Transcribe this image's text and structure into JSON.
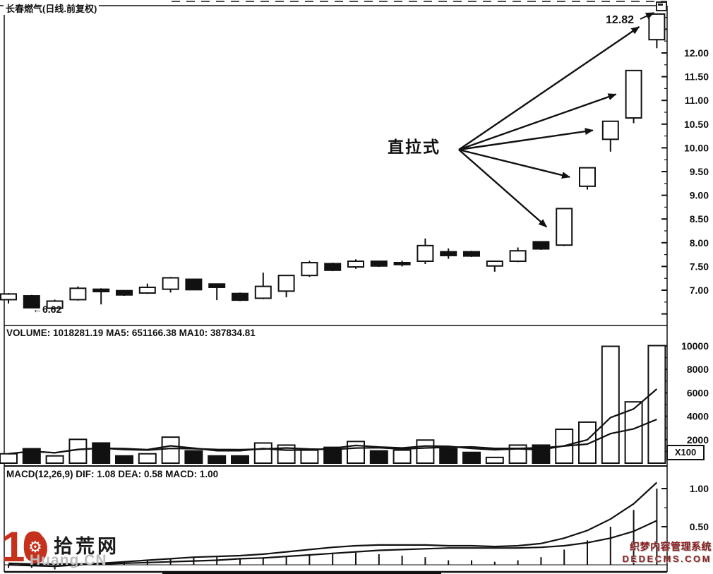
{
  "window": {
    "title": "长春燃气(日线.前复权)"
  },
  "annotations": {
    "pattern_label": "直拉式",
    "peak_price_label": "12.82",
    "low_price_label": "←6.62"
  },
  "volume_panel": {
    "header": "VOLUME: 1018281.19 MA5: 651166.38 MA10: 387834.81",
    "unit_label": "X100"
  },
  "macd_panel": {
    "header": "MACD(12,26,9) DIF: 1.08 DEA: 0.58 MACD: 1.00"
  },
  "watermarks": {
    "left": {
      "big_number": "10",
      "gear_icon": "⚙",
      "site_name_cn": "拾荒网",
      "site_name_en": "Huang.CN"
    },
    "right": {
      "line1": "织梦内容管理系统",
      "line2": "DEDECMS.COM"
    }
  },
  "colors": {
    "ink": "#111111",
    "panel_bg": "#ffffff",
    "watermark_red": "#c5311c",
    "watermark_maroon": "#8b2020",
    "watermark_gray": "#bdbdbd"
  },
  "chart_data": [
    {
      "type": "candlestick",
      "title": "长春燃气(日线.前复权)",
      "y_axis": {
        "tick_values": [
          12.0,
          11.5,
          11.0,
          10.5,
          10.0,
          9.5,
          9.0,
          8.5,
          8.0,
          7.5,
          7.0
        ],
        "tick_labels": [
          "12.00",
          "11.50",
          "11.00",
          "10.50",
          "10.00",
          "9.50",
          "9.00",
          "8.50",
          "8.00",
          "7.50",
          "7.00"
        ]
      },
      "columns": [
        "high",
        "body_top",
        "body_bottom",
        "low",
        "fill"
      ],
      "candles": [
        [
          6.94,
          6.92,
          6.8,
          6.72,
          "w"
        ],
        [
          6.9,
          6.88,
          6.63,
          6.62,
          "b"
        ],
        [
          6.8,
          6.77,
          6.62,
          6.6,
          "w"
        ],
        [
          7.08,
          7.04,
          6.8,
          6.78,
          "w"
        ],
        [
          7.04,
          7.02,
          6.97,
          6.7,
          "b"
        ],
        [
          7.0,
          6.99,
          6.9,
          6.88,
          "b"
        ],
        [
          7.14,
          7.06,
          6.94,
          6.92,
          "w"
        ],
        [
          7.28,
          7.26,
          7.02,
          6.95,
          "w"
        ],
        [
          7.24,
          7.23,
          7.01,
          7.0,
          "b"
        ],
        [
          7.14,
          7.13,
          7.06,
          6.79,
          "b"
        ],
        [
          6.95,
          6.93,
          6.79,
          6.77,
          "b"
        ],
        [
          7.37,
          7.08,
          6.83,
          6.81,
          "w"
        ],
        [
          7.32,
          7.31,
          6.98,
          6.85,
          "w"
        ],
        [
          7.62,
          7.58,
          7.31,
          7.28,
          "w"
        ],
        [
          7.58,
          7.56,
          7.42,
          7.4,
          "b"
        ],
        [
          7.65,
          7.61,
          7.49,
          7.45,
          "w"
        ],
        [
          7.62,
          7.61,
          7.51,
          7.49,
          "b"
        ],
        [
          7.62,
          7.58,
          7.54,
          7.5,
          "b"
        ],
        [
          8.09,
          7.94,
          7.61,
          7.55,
          "w"
        ],
        [
          7.88,
          7.81,
          7.73,
          7.66,
          "b"
        ],
        [
          7.83,
          7.81,
          7.72,
          7.7,
          "b"
        ],
        [
          7.62,
          7.61,
          7.51,
          7.39,
          "w"
        ],
        [
          7.9,
          7.83,
          7.61,
          7.59,
          "w"
        ],
        [
          8.03,
          8.02,
          7.87,
          7.85,
          "b"
        ],
        [
          8.72,
          8.72,
          7.95,
          7.93,
          "w"
        ],
        [
          9.58,
          9.58,
          9.19,
          9.12,
          "w"
        ],
        [
          10.56,
          10.56,
          10.18,
          9.92,
          "w"
        ],
        [
          11.63,
          11.63,
          10.63,
          10.52,
          "w"
        ],
        [
          12.82,
          12.82,
          12.28,
          12.1,
          "w"
        ]
      ],
      "pattern_annotation": {
        "label": "直拉式",
        "target_candles": [
          24,
          25,
          26,
          27,
          28
        ]
      },
      "peak_annotation": {
        "label": "12.82",
        "candle": 28
      },
      "low_annotation": {
        "label": "←6.62",
        "candle": 1
      }
    },
    {
      "type": "bar",
      "name": "VOLUME",
      "header": "VOLUME: 1018281.19 MA5: 651166.38 MA10: 387834.81",
      "unit": "X100",
      "y_axis": {
        "tick_values": [
          10000,
          8000,
          6000,
          4000,
          2000
        ],
        "tick_labels": [
          "10000",
          "8000",
          "6000",
          "4000",
          "2000"
        ]
      },
      "values": [
        800,
        1230,
        620,
        2030,
        1720,
        620,
        800,
        2220,
        1050,
        620,
        620,
        1720,
        1540,
        1110,
        1350,
        1850,
        1050,
        1110,
        1970,
        1230,
        920,
        490,
        1540,
        1540,
        2890,
        3500,
        9970,
        5230,
        10030
      ],
      "fills": [
        "w",
        "b",
        "w",
        "w",
        "b",
        "b",
        "w",
        "w",
        "b",
        "b",
        "b",
        "w",
        "w",
        "w",
        "b",
        "w",
        "b",
        "w",
        "w",
        "b",
        "b",
        "w",
        "w",
        "b",
        "w",
        "w",
        "w",
        "w",
        "w"
      ],
      "ma_windows": [
        5,
        10
      ]
    },
    {
      "type": "line",
      "name": "MACD",
      "header": "MACD(12,26,9) DIF: 1.08 DEA: 0.58 MACD: 1.00",
      "y_axis": {
        "tick_values": [
          1.0,
          0.5
        ],
        "tick_labels": [
          "1.00",
          "0.50"
        ]
      },
      "series": [
        {
          "name": "DIF",
          "values": [
            0.0,
            -0.01,
            -0.02,
            0.0,
            0.02,
            0.04,
            0.06,
            0.08,
            0.1,
            0.11,
            0.12,
            0.14,
            0.17,
            0.2,
            0.23,
            0.25,
            0.26,
            0.26,
            0.26,
            0.25,
            0.25,
            0.24,
            0.25,
            0.28,
            0.35,
            0.45,
            0.6,
            0.8,
            1.08
          ]
        },
        {
          "name": "DEA",
          "values": [
            0.02,
            0.01,
            0.01,
            0.01,
            0.01,
            0.02,
            0.03,
            0.04,
            0.05,
            0.06,
            0.08,
            0.09,
            0.11,
            0.13,
            0.15,
            0.17,
            0.19,
            0.2,
            0.21,
            0.22,
            0.22,
            0.22,
            0.22,
            0.23,
            0.25,
            0.29,
            0.35,
            0.44,
            0.58
          ]
        }
      ],
      "histogram_rule": "2*(DIF-DEA)"
    }
  ]
}
